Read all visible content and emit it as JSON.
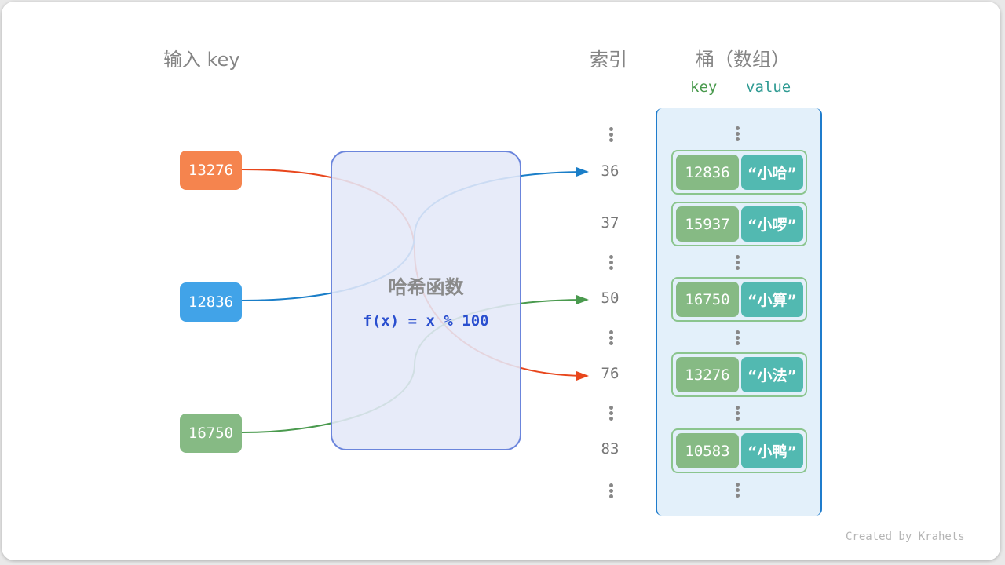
{
  "headers": {
    "input_key": "输入 key",
    "index": "索引",
    "bucket": "桶（数组）",
    "key": "key",
    "value": "value"
  },
  "inputs": [
    {
      "key": "13276",
      "color": "#f5844e",
      "target_index": "76"
    },
    {
      "key": "12836",
      "color": "#41a3e8",
      "target_index": "36"
    },
    {
      "key": "16750",
      "color": "#86ba84",
      "target_index": "50"
    }
  ],
  "hash_function": {
    "title": "哈希函数",
    "formula": "f(x) = x % 100"
  },
  "buckets": [
    {
      "index": "36",
      "key": "12836",
      "value": "“小哈”"
    },
    {
      "index": "37",
      "key": "15937",
      "value": "“小啰”"
    },
    {
      "index": "50",
      "key": "16750",
      "value": "“小算”"
    },
    {
      "index": "76",
      "key": "13276",
      "value": "“小法”"
    },
    {
      "index": "83",
      "key": "10583",
      "value": "“小鸭”"
    }
  ],
  "arrow_colors": {
    "red": "#e8461c",
    "blue": "#1a7ec8",
    "green": "#4a9a4e"
  },
  "credit": "Created by Krahets"
}
